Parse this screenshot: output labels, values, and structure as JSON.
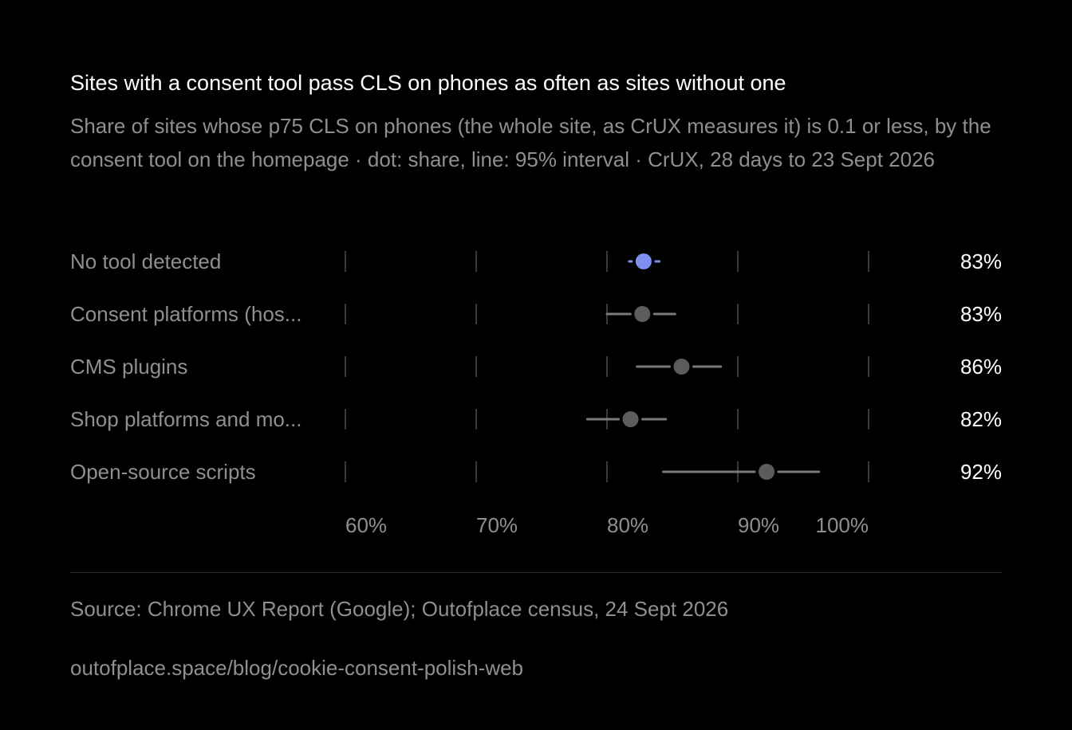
{
  "title": "Sites with a consent tool pass CLS on phones as often as sites without one",
  "subtitle": "Share of sites whose p75 CLS on phones (the whole site, as CrUX measures it) is 0.1 or less, by the consent tool on the homepage · dot: share, line: 95% interval · CrUX, 28 days to 23 Sept 2026",
  "source": "Source: Chrome UX Report (Google); Outofplace census, 24 Sept 2026",
  "url": "outofplace.space/blog/cookie-consent-polish-web",
  "colors": {
    "background": "#000000",
    "highlight": "#7f8ef0",
    "neutral": "#5c5c5c",
    "interval": "#7a7a7a",
    "grid": "#3a3a3a",
    "muted_text": "#8f8f8f",
    "text": "#ffffff"
  },
  "chart_data": {
    "type": "scatter",
    "subtype": "dot-and-interval",
    "xlim": [
      60,
      100
    ],
    "x_ticks": [
      60,
      70,
      80,
      90,
      100
    ],
    "x_tick_labels": [
      "60%",
      "70%",
      "80%",
      "90%",
      "100%"
    ],
    "grid": true,
    "categories": [
      "No tool detected",
      "Consent platforms (hos...",
      "CMS plugins",
      "Shop platforms and mo...",
      "Open-source scripts"
    ],
    "values": [
      82.8,
      82.7,
      85.7,
      81.8,
      92.2
    ],
    "interval_low": [
      81.7,
      80.0,
      82.3,
      78.5,
      84.3
    ],
    "interval_high": [
      84.0,
      85.2,
      88.7,
      84.5,
      96.2
    ],
    "value_labels": [
      "83%",
      "83%",
      "86%",
      "82%",
      "92%"
    ],
    "highlighted": [
      true,
      false,
      false,
      false,
      false
    ]
  }
}
